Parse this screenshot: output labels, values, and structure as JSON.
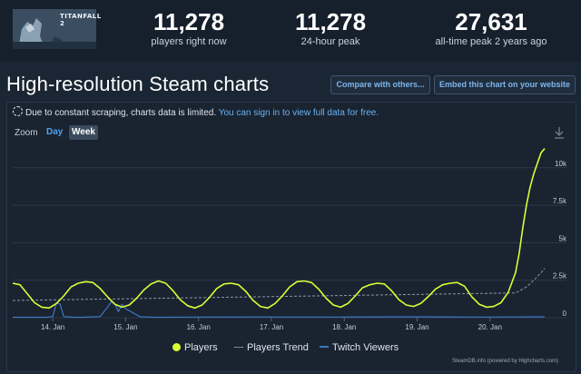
{
  "header": {
    "game_name": "TITANFALL 2",
    "stats": [
      {
        "value": "11,278",
        "label": "players right now"
      },
      {
        "value": "11,278",
        "label": "24-hour peak"
      },
      {
        "value": "27,631",
        "label": "all-time peak 2 years ago"
      }
    ]
  },
  "page": {
    "title": "High-resolution Steam charts",
    "compare_label": "Compare with others...",
    "embed_label": "Embed this chart on your website"
  },
  "notice": {
    "text": "Due to constant scraping, charts data is limited.",
    "link": "You can sign in to view full data for free."
  },
  "zoom": {
    "label": "Zoom",
    "options": [
      "Day",
      "Week"
    ],
    "selected": "Week"
  },
  "legend": {
    "players": "Players",
    "trend": "Players Trend",
    "twitch": "Twitch Viewers"
  },
  "credits": "SteamDB.info (powered by Highcharts.com)",
  "colors": {
    "players": "#d9ff35",
    "trend": "#8a98a8",
    "twitch": "#3a78c2",
    "accent": "#66b3f4"
  },
  "chart_data": {
    "type": "line",
    "x_categories": [
      "14. Jan",
      "15. Jan",
      "16. Jan",
      "17. Jan",
      "18. Jan",
      "19. Jan",
      "20. Jan"
    ],
    "y_ticks": [
      "0",
      "2.5k",
      "5k",
      "7.5k",
      "10k"
    ],
    "ylim": [
      0,
      11500
    ],
    "x_range": [
      13.45,
      20.75
    ],
    "grid": true,
    "series": [
      {
        "name": "Players",
        "x": [
          13.45,
          13.55,
          13.65,
          13.75,
          13.85,
          13.95,
          14.05,
          14.15,
          14.25,
          14.35,
          14.45,
          14.55,
          14.65,
          14.75,
          14.85,
          14.95,
          15.05,
          15.15,
          15.25,
          15.35,
          15.45,
          15.55,
          15.65,
          15.75,
          15.85,
          15.95,
          16.05,
          16.15,
          16.25,
          16.35,
          16.45,
          16.55,
          16.65,
          16.75,
          16.85,
          16.95,
          17.05,
          17.15,
          17.25,
          17.35,
          17.45,
          17.55,
          17.65,
          17.75,
          17.85,
          17.95,
          18.05,
          18.15,
          18.25,
          18.35,
          18.45,
          18.55,
          18.65,
          18.75,
          18.85,
          18.95,
          19.05,
          19.15,
          19.25,
          19.35,
          19.45,
          19.55,
          19.65,
          19.75,
          19.85,
          19.95,
          20.05,
          20.15,
          20.25,
          20.35,
          20.4,
          20.45,
          20.5,
          20.55,
          20.6,
          20.65,
          20.7,
          20.75
        ],
        "values": [
          2300,
          2200,
          1600,
          1000,
          700,
          650,
          950,
          1450,
          2050,
          2300,
          2400,
          2350,
          1950,
          1400,
          900,
          700,
          850,
          1300,
          1850,
          2250,
          2450,
          2300,
          1800,
          1200,
          800,
          650,
          850,
          1350,
          1950,
          2250,
          2300,
          2200,
          1750,
          1150,
          750,
          650,
          950,
          1450,
          2050,
          2400,
          2450,
          2350,
          1900,
          1300,
          850,
          700,
          950,
          1450,
          2000,
          2200,
          2300,
          2250,
          1800,
          1200,
          850,
          750,
          950,
          1400,
          1900,
          2200,
          2300,
          2350,
          2100,
          1400,
          900,
          700,
          750,
          1000,
          1700,
          3000,
          4300,
          6000,
          7500,
          8700,
          9600,
          10300,
          11000,
          11278
        ]
      },
      {
        "name": "Players Trend",
        "x": [
          13.45,
          20.35,
          20.5,
          20.6,
          20.7,
          20.75
        ],
        "values": [
          1150,
          1650,
          2050,
          2500,
          3000,
          3300
        ]
      },
      {
        "name": "Twitch Viewers",
        "x": [
          13.45,
          13.9,
          14.0,
          14.05,
          14.1,
          14.15,
          14.3,
          14.4,
          14.65,
          14.75,
          14.8,
          14.85,
          14.9,
          14.95,
          15.0,
          15.2,
          15.4,
          15.9,
          16.9,
          17.9,
          18.9,
          19.9,
          20.75
        ],
        "values": [
          30,
          30,
          80,
          1000,
          900,
          80,
          30,
          30,
          80,
          700,
          1050,
          950,
          400,
          900,
          600,
          60,
          30,
          40,
          50,
          40,
          60,
          40,
          60
        ]
      }
    ]
  }
}
